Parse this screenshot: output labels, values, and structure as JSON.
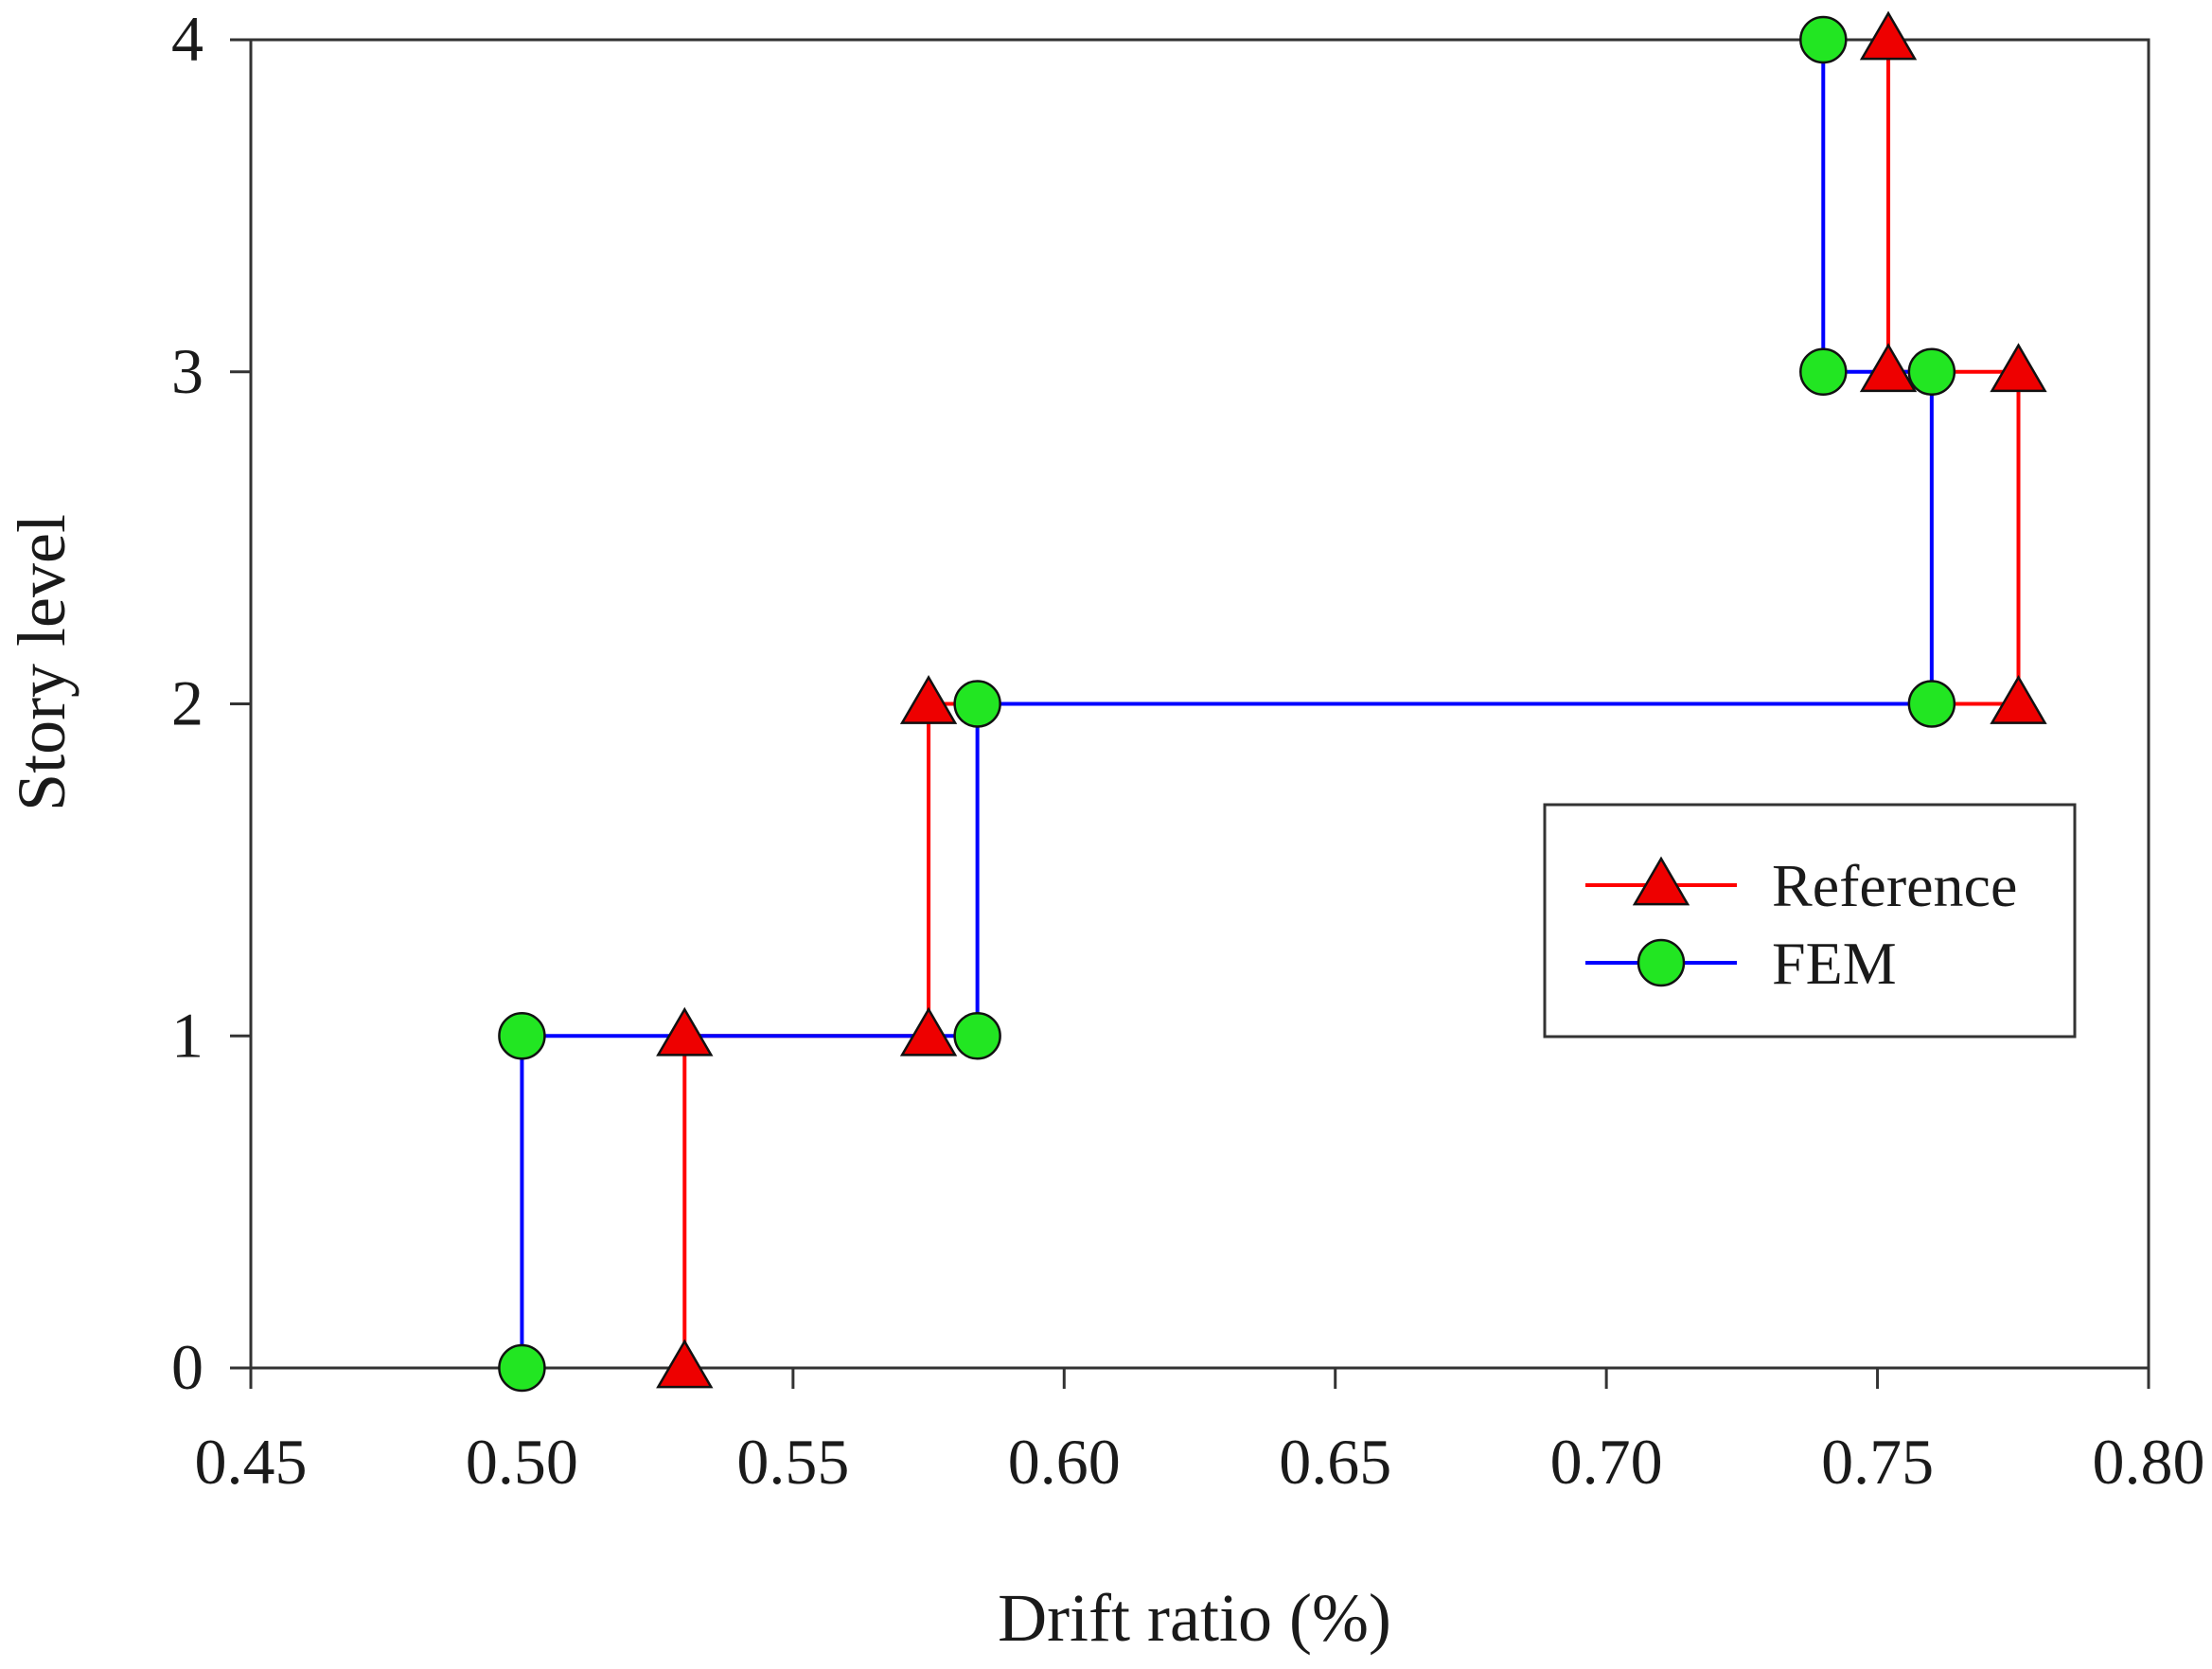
{
  "chart_data": {
    "type": "line",
    "xlabel": "Drift ratio (%)",
    "ylabel": "Story level",
    "xlim": [
      0.45,
      0.8
    ],
    "ylim": [
      0,
      4
    ],
    "x_ticks": [
      "0.45",
      "0.50",
      "0.55",
      "0.60",
      "0.65",
      "0.70",
      "0.75",
      "0.80"
    ],
    "y_ticks": [
      "0",
      "1",
      "2",
      "3",
      "4"
    ],
    "legend_position": "right",
    "series": [
      {
        "name": "Reference",
        "line_color": "#ff0000",
        "marker": "triangle",
        "marker_color": "#ee0000",
        "points": [
          {
            "x": 0.53,
            "y": 0
          },
          {
            "x": 0.53,
            "y": 1
          },
          {
            "x": 0.575,
            "y": 1
          },
          {
            "x": 0.575,
            "y": 2
          },
          {
            "x": 0.776,
            "y": 2
          },
          {
            "x": 0.776,
            "y": 3
          },
          {
            "x": 0.752,
            "y": 3
          },
          {
            "x": 0.752,
            "y": 4
          }
        ]
      },
      {
        "name": "FEM",
        "line_color": "#0000ff",
        "marker": "circle",
        "marker_color": "#22e622",
        "points": [
          {
            "x": 0.5,
            "y": 0
          },
          {
            "x": 0.5,
            "y": 1
          },
          {
            "x": 0.584,
            "y": 1
          },
          {
            "x": 0.584,
            "y": 2
          },
          {
            "x": 0.76,
            "y": 2
          },
          {
            "x": 0.76,
            "y": 3
          },
          {
            "x": 0.74,
            "y": 3
          },
          {
            "x": 0.74,
            "y": 4
          }
        ]
      }
    ]
  }
}
